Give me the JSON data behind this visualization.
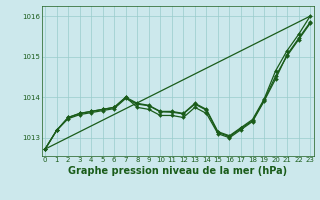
{
  "title": "Graphe pression niveau de la mer (hPa)",
  "background_color": "#cce8ec",
  "grid_color": "#99cccc",
  "line_color": "#1a5c1a",
  "x_ticks": [
    0,
    1,
    2,
    3,
    4,
    5,
    6,
    7,
    8,
    9,
    10,
    11,
    12,
    13,
    14,
    15,
    16,
    17,
    18,
    19,
    20,
    21,
    22,
    23
  ],
  "y_ticks": [
    1013,
    1014,
    1015,
    1016
  ],
  "ylim": [
    1012.55,
    1016.25
  ],
  "xlim": [
    -0.3,
    23.3
  ],
  "line_width": 0.9,
  "marker": "D",
  "marker_size": 2.0,
  "title_fontsize": 7.0,
  "tick_fontsize": 5.0,
  "curves": [
    {
      "x": [
        0,
        1,
        2,
        3,
        4,
        5,
        6,
        7,
        8,
        9,
        10,
        11,
        12,
        13,
        14,
        15,
        16,
        17,
        18,
        19,
        20,
        21,
        22,
        23
      ],
      "y": [
        1012.72,
        1013.18,
        1013.47,
        1013.57,
        1013.62,
        1013.67,
        1013.72,
        1013.97,
        1013.83,
        1013.79,
        1013.64,
        1013.63,
        1013.59,
        1013.83,
        1013.68,
        1013.13,
        1013.03,
        1013.23,
        1013.42,
        1013.92,
        1014.52,
        1015.02,
        1015.42,
        1015.82
      ],
      "markers": true
    },
    {
      "x": [
        0,
        1,
        2,
        3,
        4,
        5,
        6,
        7,
        8,
        9,
        10,
        11,
        12,
        13,
        14,
        15,
        16,
        17,
        18,
        19,
        20,
        21,
        22,
        23
      ],
      "y": [
        1012.72,
        1013.18,
        1013.5,
        1013.6,
        1013.65,
        1013.7,
        1013.75,
        1014.0,
        1013.85,
        1013.8,
        1013.65,
        1013.65,
        1013.6,
        1013.85,
        1013.7,
        1013.15,
        1013.05,
        1013.25,
        1013.45,
        1013.95,
        1014.65,
        1015.15,
        1015.55,
        1016.0
      ],
      "markers": true
    },
    {
      "x": [
        0,
        23
      ],
      "y": [
        1012.72,
        1016.0
      ],
      "markers": false
    },
    {
      "x": [
        0,
        1,
        2,
        3,
        4,
        5,
        6,
        7,
        8,
        9,
        10,
        11,
        12,
        13,
        14,
        15,
        16,
        17,
        18,
        19,
        20,
        21,
        22,
        23
      ],
      "y": [
        1012.72,
        1013.18,
        1013.5,
        1013.6,
        1013.65,
        1013.7,
        1013.75,
        1014.0,
        1013.75,
        1013.7,
        1013.55,
        1013.55,
        1013.5,
        1013.75,
        1013.6,
        1013.1,
        1013.0,
        1013.2,
        1013.4,
        1013.9,
        1014.45,
        1015.05,
        1015.45,
        1015.85
      ],
      "markers": true
    }
  ]
}
